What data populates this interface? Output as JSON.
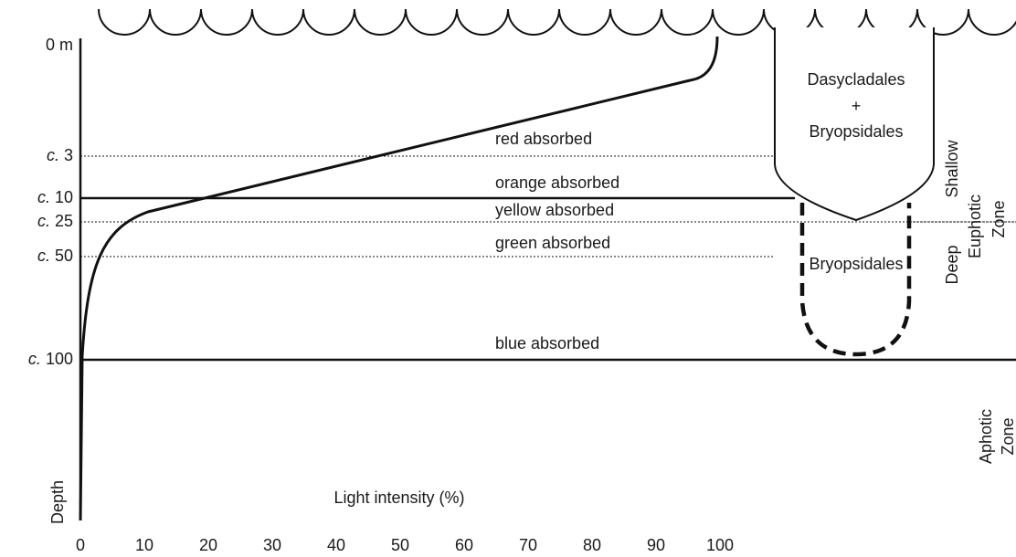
{
  "axis": {
    "x_label": "Light intensity (%)",
    "y_label": "Depth",
    "surface": "0 m",
    "x_ticks": [
      0,
      10,
      20,
      30,
      40,
      50,
      60,
      70,
      80,
      90,
      100
    ]
  },
  "depths": [
    {
      "prefix": "c.",
      "depth": 3,
      "absorbed": "red absorbed"
    },
    {
      "prefix": "c.",
      "depth": 10,
      "absorbed": "orange absorbed"
    },
    {
      "prefix": "c.",
      "depth": 25,
      "absorbed": "yellow absorbed"
    },
    {
      "prefix": "c.",
      "depth": 50,
      "absorbed": "green absorbed"
    },
    {
      "prefix": "c.",
      "depth": 100,
      "absorbed": "blue absorbed"
    }
  ],
  "algae": {
    "shallow": [
      "Dasycladales",
      "+",
      "Bryopsidales"
    ],
    "deep": "Bryopsidales"
  },
  "zones": {
    "shallow": "Shallow",
    "euphotic": [
      "Euphotic",
      "Zone"
    ],
    "deep": "Deep",
    "aphotic": [
      "Aphotic",
      "Zone"
    ]
  }
}
